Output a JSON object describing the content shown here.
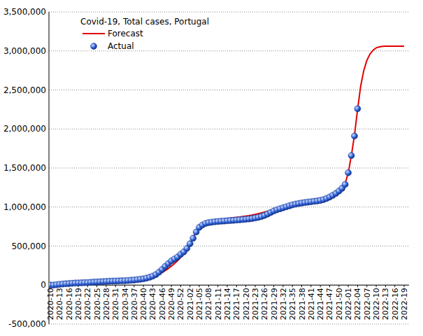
{
  "chart_data": {
    "type": "line",
    "title": "Covid-19, Total cases, Portugal",
    "categories": [
      "2020-10",
      null,
      null,
      "2020-13",
      null,
      null,
      "2020-16",
      null,
      null,
      "2020-19",
      null,
      null,
      "2020-22",
      null,
      null,
      "2020-25",
      null,
      null,
      "2020-28",
      null,
      null,
      "2020-31",
      null,
      null,
      "2020-34",
      null,
      null,
      "2020-37",
      null,
      null,
      "2020-40",
      null,
      null,
      "2020-43",
      null,
      null,
      "2020-46",
      null,
      null,
      "2020-49",
      null,
      null,
      "2020-52",
      null,
      null,
      "2021-02",
      null,
      null,
      "2021-05",
      null,
      null,
      "2021-08",
      null,
      null,
      "2021-11",
      null,
      null,
      "2021-14",
      null,
      null,
      "2021-17",
      null,
      null,
      "2021-20",
      null,
      null,
      "2021-23",
      null,
      null,
      "2021-26",
      null,
      null,
      "2021-29",
      null,
      null,
      "2021-32",
      null,
      null,
      "2021-35",
      null,
      null,
      "2021-38",
      null,
      null,
      "2021-41",
      null,
      null,
      "2021-44",
      null,
      null,
      "2021-47",
      null,
      null,
      "2021-50",
      null,
      null,
      "2022-01",
      null,
      null,
      "2022-04",
      null,
      null,
      "2022-07",
      null,
      null,
      "2022-10",
      null,
      null,
      "2022-13",
      null,
      null,
      "2022-16",
      null,
      null,
      "2022-19"
    ],
    "series": [
      {
        "name": "Forecast",
        "type": "line",
        "color": "#e00000",
        "line_style": "solid",
        "values": [
          0,
          1000,
          3000,
          6000,
          9000,
          12000,
          15000,
          18000,
          21000,
          24000,
          26000,
          28000,
          30000,
          32000,
          34000,
          36000,
          38000,
          40000,
          42000,
          44000,
          46000,
          48000,
          50000,
          52000,
          54000,
          56000,
          59000,
          62000,
          66000,
          71000,
          77000,
          85000,
          95000,
          108000,
          122000,
          140000,
          160000,
          185000,
          212000,
          242000,
          275000,
          312000,
          355000,
          405000,
          465000,
          535000,
          610000,
          680000,
          735000,
          772000,
          795000,
          810000,
          820000,
          828000,
          835000,
          841000,
          847000,
          853000,
          858000,
          863000,
          868000,
          873000,
          878000,
          884000,
          890000,
          897000,
          905000,
          914000,
          924000,
          935000,
          946000,
          958000,
          970000,
          982000,
          994000,
          1005000,
          1016000,
          1026000,
          1035000,
          1043000,
          1050000,
          1057000,
          1063000,
          1069000,
          1075000,
          1081000,
          1088000,
          1096000,
          1106000,
          1118000,
          1133000,
          1152000,
          1176000,
          1206000,
          1245000,
          1300000,
          1440000,
          1660000,
          1920000,
          2250000,
          2550000,
          2750000,
          2880000,
          2960000,
          3010000,
          3040000,
          3052000,
          3058000,
          3060000,
          3060000,
          3060000,
          3060000,
          3060000,
          3060000,
          3060000
        ]
      },
      {
        "name": "Actual",
        "type": "scatter",
        "color": "#2a5bd7",
        "marker": "circle",
        "values": [
          100,
          1000,
          5000,
          10000,
          14000,
          17000,
          20000,
          23000,
          26000,
          28000,
          29000,
          31000,
          32000,
          35000,
          38000,
          40000,
          42000,
          45000,
          47000,
          49000,
          51000,
          52000,
          54000,
          55000,
          56000,
          59000,
          62000,
          65000,
          70000,
          75000,
          80000,
          90000,
          100000,
          115000,
          135000,
          165000,
          200000,
          240000,
          275000,
          310000,
          335000,
          360000,
          395000,
          425000,
          470000,
          530000,
          600000,
          680000,
          740000,
          770000,
          790000,
          800000,
          806000,
          811000,
          815000,
          818000,
          821000,
          824000,
          827000,
          830000,
          833000,
          836000,
          840000,
          844000,
          848000,
          853000,
          860000,
          868000,
          878000,
          892000,
          910000,
          930000,
          950000,
          965000,
          978000,
          990000,
          1003000,
          1016000,
          1028000,
          1037000,
          1045000,
          1052000,
          1058000,
          1063000,
          1068000,
          1073000,
          1078000,
          1085000,
          1095000,
          1110000,
          1128000,
          1150000,
          1175000,
          1205000,
          1240000,
          1290000,
          1440000,
          1660000,
          1910000,
          2260000,
          null,
          null,
          null,
          null,
          null,
          null,
          null,
          null,
          null,
          null,
          null,
          null,
          null,
          null,
          null
        ]
      }
    ],
    "ylim": [
      -500000,
      3500000
    ],
    "yticks": [
      {
        "value": -500000,
        "label": "-500,000"
      },
      {
        "value": 0,
        "label": "0"
      },
      {
        "value": 500000,
        "label": "500,000"
      },
      {
        "value": 1000000,
        "label": "1,000,000"
      },
      {
        "value": 1500000,
        "label": "1,500,000"
      },
      {
        "value": 2000000,
        "label": "2,000,000"
      },
      {
        "value": 2500000,
        "label": "2,500,000"
      },
      {
        "value": 3000000,
        "label": "3,000,000"
      },
      {
        "value": 3500000,
        "label": "3,500,000"
      }
    ],
    "grid": true,
    "legend": "upper left"
  }
}
